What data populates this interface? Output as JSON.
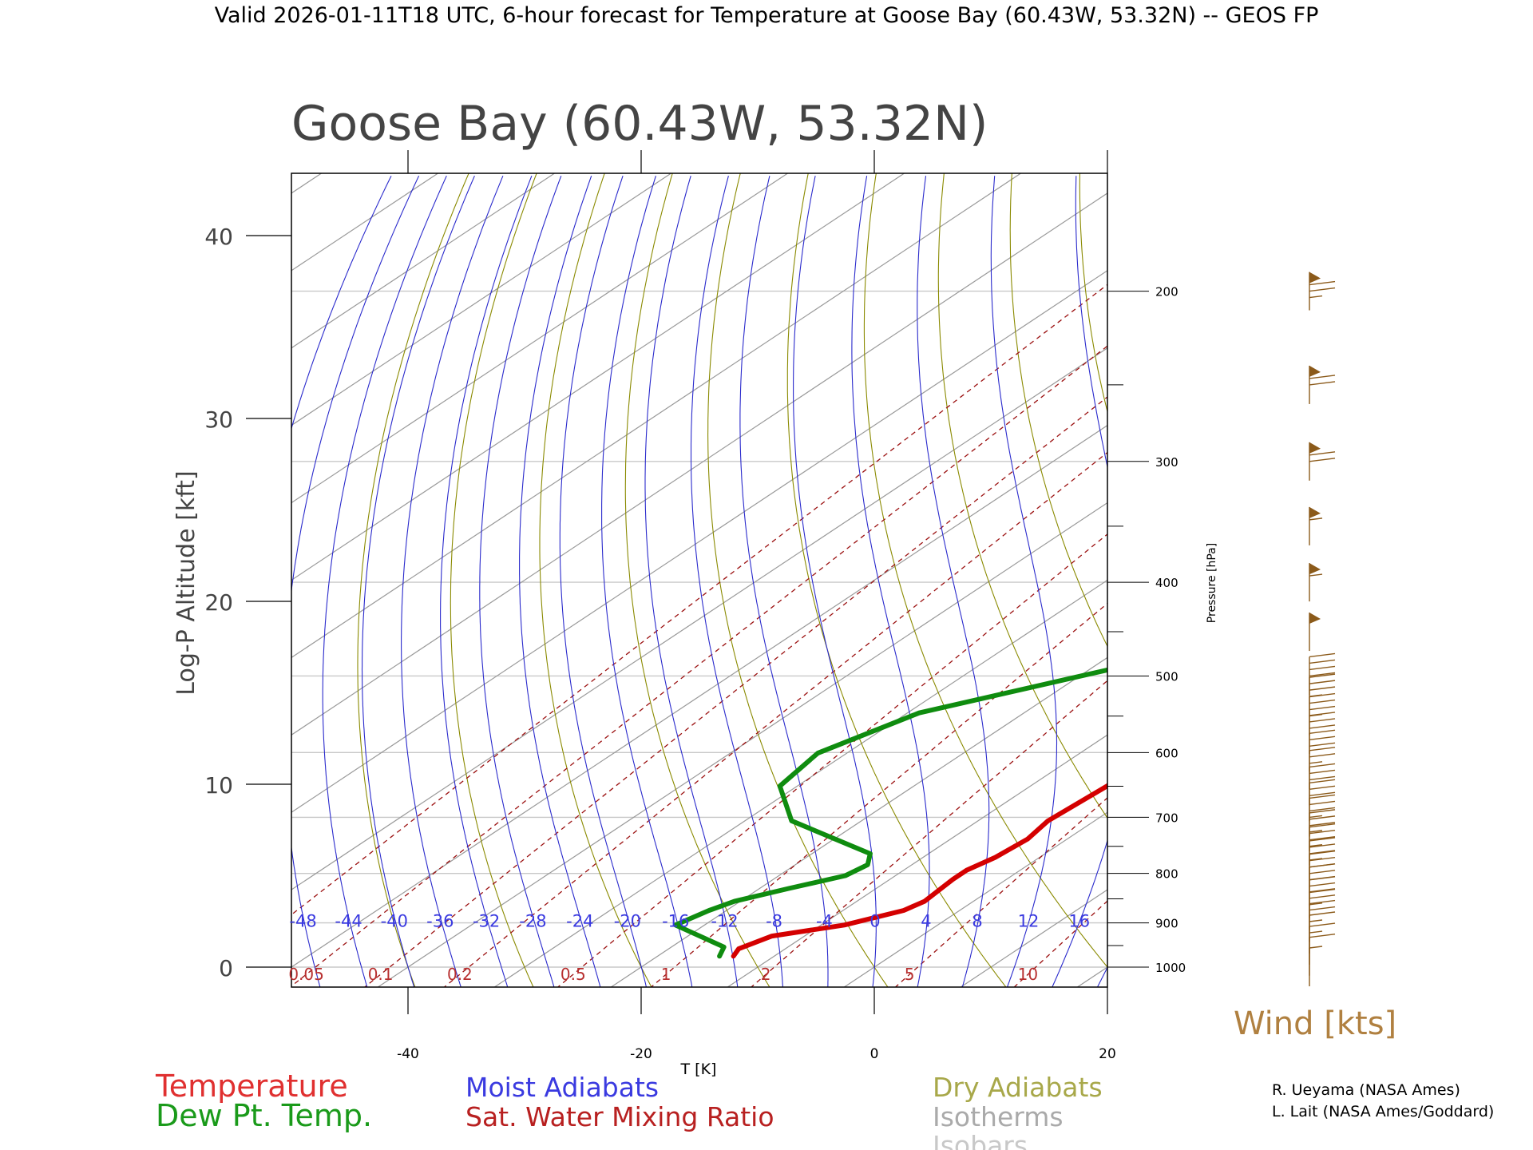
{
  "header": {
    "title": "Valid 2026-01-11T18 UTC, 6-hour forecast for Temperature at Goose Bay (60.43W, 53.32N) -- GEOS FP"
  },
  "chart_data": {
    "type": "line",
    "title": "Goose Bay (60.43W, 53.32N)",
    "xlabel": "T [K]",
    "ylabel": "Log-P Altitude [kft]",
    "right_axis_label": "Pressure [hPa]",
    "xlim": [
      -50,
      20
    ],
    "x_ticks": [
      -40,
      -20,
      0,
      20
    ],
    "y_ticks": [
      0,
      10,
      20,
      30,
      40
    ],
    "pressure_ticks": [
      1000,
      900,
      800,
      700,
      600,
      500,
      400,
      300,
      200
    ],
    "moist_adiabat_labels": [
      "-48",
      "-44",
      "-40",
      "-36",
      "-32",
      "-28",
      "-24",
      "-20",
      "-16",
      "-12",
      "-8",
      "-4",
      "0",
      "4",
      "8",
      "12",
      "16"
    ],
    "mixing_ratio_labels": [
      "0.05",
      "0.1",
      "0.2",
      "0.5",
      "1",
      "2",
      "5",
      "10"
    ],
    "series": [
      {
        "name": "Temperature",
        "color": "#d40000",
        "points": [
          [
            -13.5,
            0.6
          ],
          [
            -14.0,
            1.0
          ],
          [
            -12.8,
            1.7
          ],
          [
            -8.0,
            2.3
          ],
          [
            -4.8,
            3.1
          ],
          [
            -4.2,
            3.6
          ],
          [
            -4.6,
            4.8
          ],
          [
            -4.6,
            5.3
          ],
          [
            -3.8,
            6.0
          ],
          [
            -3.4,
            7.0
          ],
          [
            -4.0,
            8.0
          ],
          [
            -3.4,
            10.0
          ],
          [
            -3.2,
            13.0
          ],
          [
            -3.4,
            15.5
          ],
          [
            -5.0,
            17.5
          ],
          [
            -6.7,
            19.5
          ],
          [
            -7.8,
            22.0
          ],
          [
            -8.1,
            24.0
          ],
          [
            -7.7,
            27.5
          ],
          [
            -3.0,
            31.0
          ],
          [
            6.5,
            38.0
          ],
          [
            14.5,
            43.0
          ]
        ]
      },
      {
        "name": "Dew Pt. Temp.",
        "color": "#0f8c0f",
        "points": [
          [
            -14.7,
            0.6
          ],
          [
            -15.5,
            1.1
          ],
          [
            -22.5,
            2.3
          ],
          [
            -21.5,
            3.1
          ],
          [
            -20.5,
            3.6
          ],
          [
            -17.5,
            4.3
          ],
          [
            -14.3,
            5.0
          ],
          [
            -13.8,
            5.6
          ],
          [
            -15.0,
            6.2
          ],
          [
            -26.0,
            8.0
          ],
          [
            -31.5,
            9.9
          ],
          [
            -32.5,
            11.7
          ],
          [
            -29.0,
            13.9
          ],
          [
            -20.0,
            15.9
          ],
          [
            -9.0,
            18.3
          ],
          [
            -7.2,
            20.5
          ],
          [
            -9.0,
            23.5
          ],
          [
            -13.0,
            27.5
          ],
          [
            -15.5,
            32.0
          ],
          [
            -16.5,
            37.0
          ],
          [
            -11.0,
            40.0
          ],
          [
            -8.0,
            43.0
          ]
        ]
      }
    ],
    "wind_barb_color": "#8b5a1a",
    "wind_barbs": [
      {
        "pressure": 200,
        "speed_kts": 75
      },
      {
        "pressure": 250,
        "speed_kts": 70
      },
      {
        "pressure": 300,
        "speed_kts": 70
      },
      {
        "pressure": 350,
        "speed_kts": 55
      },
      {
        "pressure": 400,
        "speed_kts": 55
      },
      {
        "pressure": 450,
        "speed_kts": 50
      },
      {
        "pressure": 500,
        "speed_kts": 40
      },
      {
        "pressure": 525,
        "speed_kts": 35
      },
      {
        "pressure": 550,
        "speed_kts": 35
      },
      {
        "pressure": 575,
        "speed_kts": 30
      },
      {
        "pressure": 600,
        "speed_kts": 30
      },
      {
        "pressure": 625,
        "speed_kts": 25
      },
      {
        "pressure": 650,
        "speed_kts": 30
      },
      {
        "pressure": 675,
        "speed_kts": 30
      },
      {
        "pressure": 700,
        "speed_kts": 35
      },
      {
        "pressure": 725,
        "speed_kts": 35
      },
      {
        "pressure": 750,
        "speed_kts": 35
      },
      {
        "pressure": 775,
        "speed_kts": 35
      },
      {
        "pressure": 800,
        "speed_kts": 30
      },
      {
        "pressure": 825,
        "speed_kts": 30
      },
      {
        "pressure": 850,
        "speed_kts": 30
      },
      {
        "pressure": 875,
        "speed_kts": 25
      },
      {
        "pressure": 900,
        "speed_kts": 20
      },
      {
        "pressure": 925,
        "speed_kts": 15
      },
      {
        "pressure": 950,
        "speed_kts": 15
      },
      {
        "pressure": 975,
        "speed_kts": 10
      },
      {
        "pressure": 1000,
        "speed_kts": 5
      }
    ],
    "wind_label": "Wind [kts]"
  },
  "legend": {
    "temperature": "Temperature",
    "dewpoint": "Dew Pt. Temp.",
    "moist_adiabats": "Moist Adiabats",
    "mixing_ratio": "Sat. Water Mixing Ratio",
    "dry_adiabats": "Dry Adiabats",
    "isotherms": "Isotherms",
    "isobars": "Isobars"
  },
  "credits": {
    "line1": "R. Ueyama (NASA Ames)",
    "line2": "L. Lait (NASA Ames/Goddard)"
  },
  "colors": {
    "temperature": "#d40000",
    "dewpoint": "#0f8c0f",
    "moist": "#2a2acc",
    "moist_legend": "#3a3ae0",
    "mixing": "#9b1010",
    "dry": "#8a8a00",
    "dry_legend": "#a8a84a",
    "isotherm": "#999999",
    "isobar": "#c8c8c8",
    "wind": "#8b5a1a"
  }
}
